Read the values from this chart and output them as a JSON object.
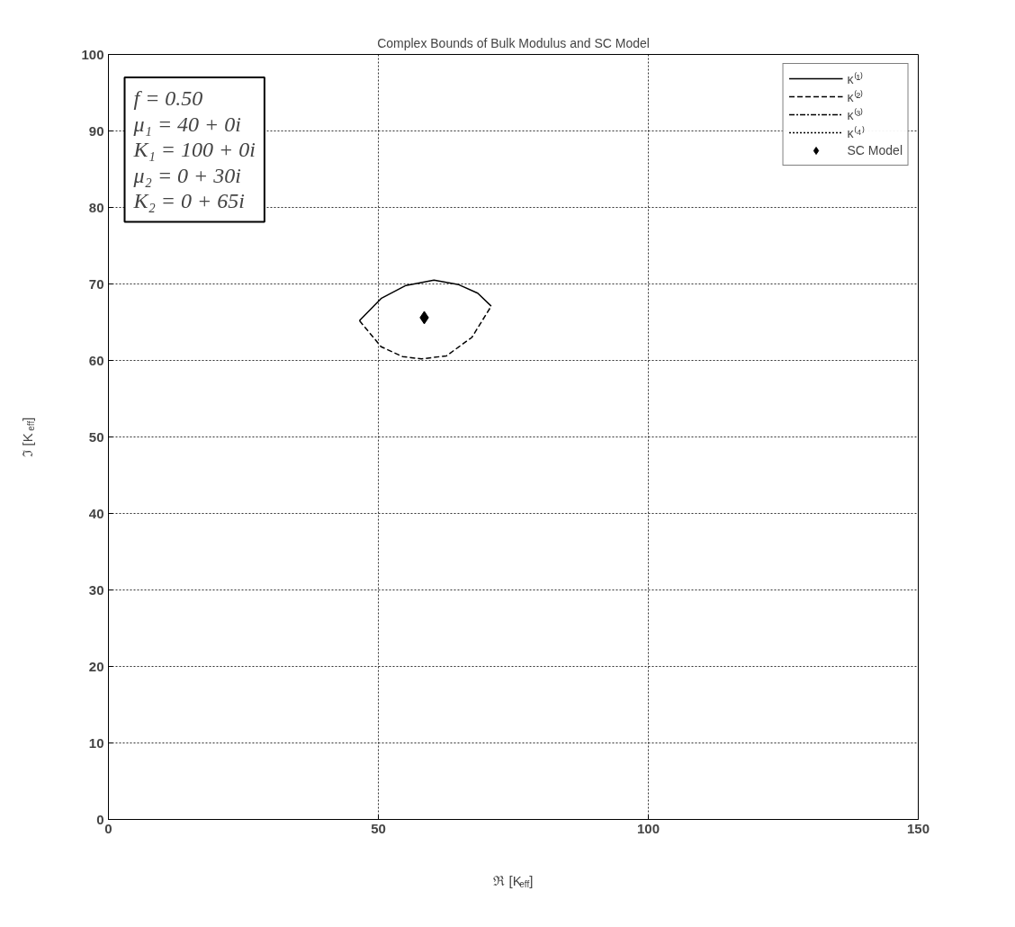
{
  "chart_data": {
    "type": "line",
    "title": "Complex Bounds of Bulk Modulus and SC Model",
    "xlabel": "ℜ [K$_{eff}$]",
    "ylabel": "ℑ [K$_{eff}$]",
    "xlim": [
      0,
      150
    ],
    "ylim": [
      0,
      100
    ],
    "xticks": [
      0,
      50,
      100,
      150
    ],
    "yticks": [
      0,
      10,
      20,
      30,
      40,
      50,
      60,
      70,
      80,
      90,
      100
    ],
    "grid": true,
    "legend": "top right",
    "annotations": [
      "f = 0.50\nμ₁ = 40 + 0i\nK₁ = 100 + 0i\nμ₂ = 0 + 30i\nK₂ = 0 + 65i"
    ],
    "series": [
      {
        "name": "κ⁽¹⁾",
        "color": "#000000",
        "line_style": "solid",
        "x": [
          46.5,
          50.5,
          55.1,
          60.3,
          64.9,
          68.4,
          70.9
        ],
        "values": [
          65.2,
          68.1,
          69.8,
          70.5,
          69.9,
          68.8,
          67.1
        ]
      },
      {
        "name": "κ⁽²⁾",
        "color": "#000000",
        "line_style": "dashed",
        "x": [
          46.5,
          50.5,
          54.5,
          58.0,
          62.6,
          67.3,
          70.9
        ],
        "values": [
          65.2,
          61.8,
          60.5,
          60.2,
          60.6,
          63.0,
          67.1
        ]
      },
      {
        "name": "κ⁽³⁾",
        "color": "#000000",
        "line_style": "dashdot"
      },
      {
        "name": "κ⁽⁴⁾",
        "color": "#000000",
        "line_style": "dotted"
      },
      {
        "name": "SC Model",
        "type": "scatter",
        "marker": "diamond",
        "color": "#000000",
        "x": [
          58.5
        ],
        "values": [
          65.6
        ]
      }
    ]
  }
}
